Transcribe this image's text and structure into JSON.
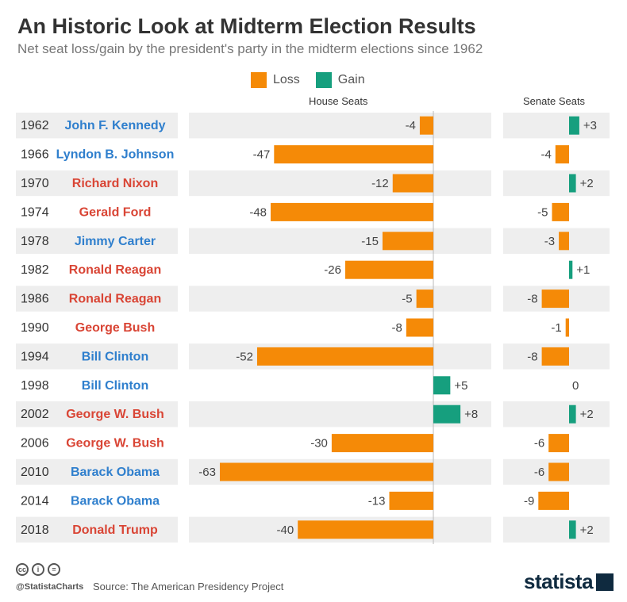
{
  "title": "An Historic Look at Midterm Election Results",
  "subtitle": "Net seat loss/gain by the president's party in the midterm elections since 1962",
  "legend": {
    "loss": "Loss",
    "gain": "Gain"
  },
  "colors": {
    "loss": "#f58a07",
    "gain": "#169f7e",
    "democrat": "#2f7fcd",
    "republican": "#d94535"
  },
  "house_header": "House Seats",
  "senate_header": "Senate Seats",
  "footer": {
    "handle": "@StatistaCharts",
    "source": "Source: The American Presidency Project",
    "brand": "statista"
  },
  "chart_data": {
    "type": "bar",
    "orientation": "horizontal",
    "title": "An Historic Look at Midterm Election Results",
    "subtitle": "Net seat loss/gain by the president's party in the midterm elections since 1962",
    "rows": [
      {
        "year": "1962",
        "president": "John F. Kennedy",
        "party": "democrat",
        "house": -4,
        "senate": 3,
        "house_label": "-4",
        "senate_label": "+3"
      },
      {
        "year": "1966",
        "president": "Lyndon B. Johnson",
        "party": "democrat",
        "house": -47,
        "senate": -4,
        "house_label": "-47",
        "senate_label": "-4"
      },
      {
        "year": "1970",
        "president": "Richard Nixon",
        "party": "republican",
        "house": -12,
        "senate": 2,
        "house_label": "-12",
        "senate_label": "+2"
      },
      {
        "year": "1974",
        "president": "Gerald Ford",
        "party": "republican",
        "house": -48,
        "senate": -5,
        "house_label": "-48",
        "senate_label": "-5"
      },
      {
        "year": "1978",
        "president": "Jimmy Carter",
        "party": "democrat",
        "house": -15,
        "senate": -3,
        "house_label": "-15",
        "senate_label": "-3"
      },
      {
        "year": "1982",
        "president": "Ronald Reagan",
        "party": "republican",
        "house": -26,
        "senate": 1,
        "house_label": "-26",
        "senate_label": "+1"
      },
      {
        "year": "1986",
        "president": "Ronald Reagan",
        "party": "republican",
        "house": -5,
        "senate": -8,
        "house_label": "-5",
        "senate_label": "-8"
      },
      {
        "year": "1990",
        "president": "George Bush",
        "party": "republican",
        "house": -8,
        "senate": -1,
        "house_label": "-8",
        "senate_label": "-1"
      },
      {
        "year": "1994",
        "president": "Bill Clinton",
        "party": "democrat",
        "house": -52,
        "senate": -8,
        "house_label": "-52",
        "senate_label": "-8"
      },
      {
        "year": "1998",
        "president": "Bill Clinton",
        "party": "democrat",
        "house": 5,
        "senate": 0,
        "house_label": "+5",
        "senate_label": "0"
      },
      {
        "year": "2002",
        "president": "George W. Bush",
        "party": "republican",
        "house": 8,
        "senate": 2,
        "house_label": "+8",
        "senate_label": "+2"
      },
      {
        "year": "2006",
        "president": "George W. Bush",
        "party": "republican",
        "house": -30,
        "senate": -6,
        "house_label": "-30",
        "senate_label": "-6"
      },
      {
        "year": "2010",
        "president": "Barack Obama",
        "party": "democrat",
        "house": -63,
        "senate": -6,
        "house_label": "-63",
        "senate_label": "-6"
      },
      {
        "year": "2014",
        "president": "Barack Obama",
        "party": "democrat",
        "house": -13,
        "senate": -9,
        "house_label": "-13",
        "senate_label": "-9"
      },
      {
        "year": "2018",
        "president": "Donald Trump",
        "party": "republican",
        "house": -40,
        "senate": 2,
        "house_label": "-40",
        "senate_label": "+2"
      }
    ]
  }
}
